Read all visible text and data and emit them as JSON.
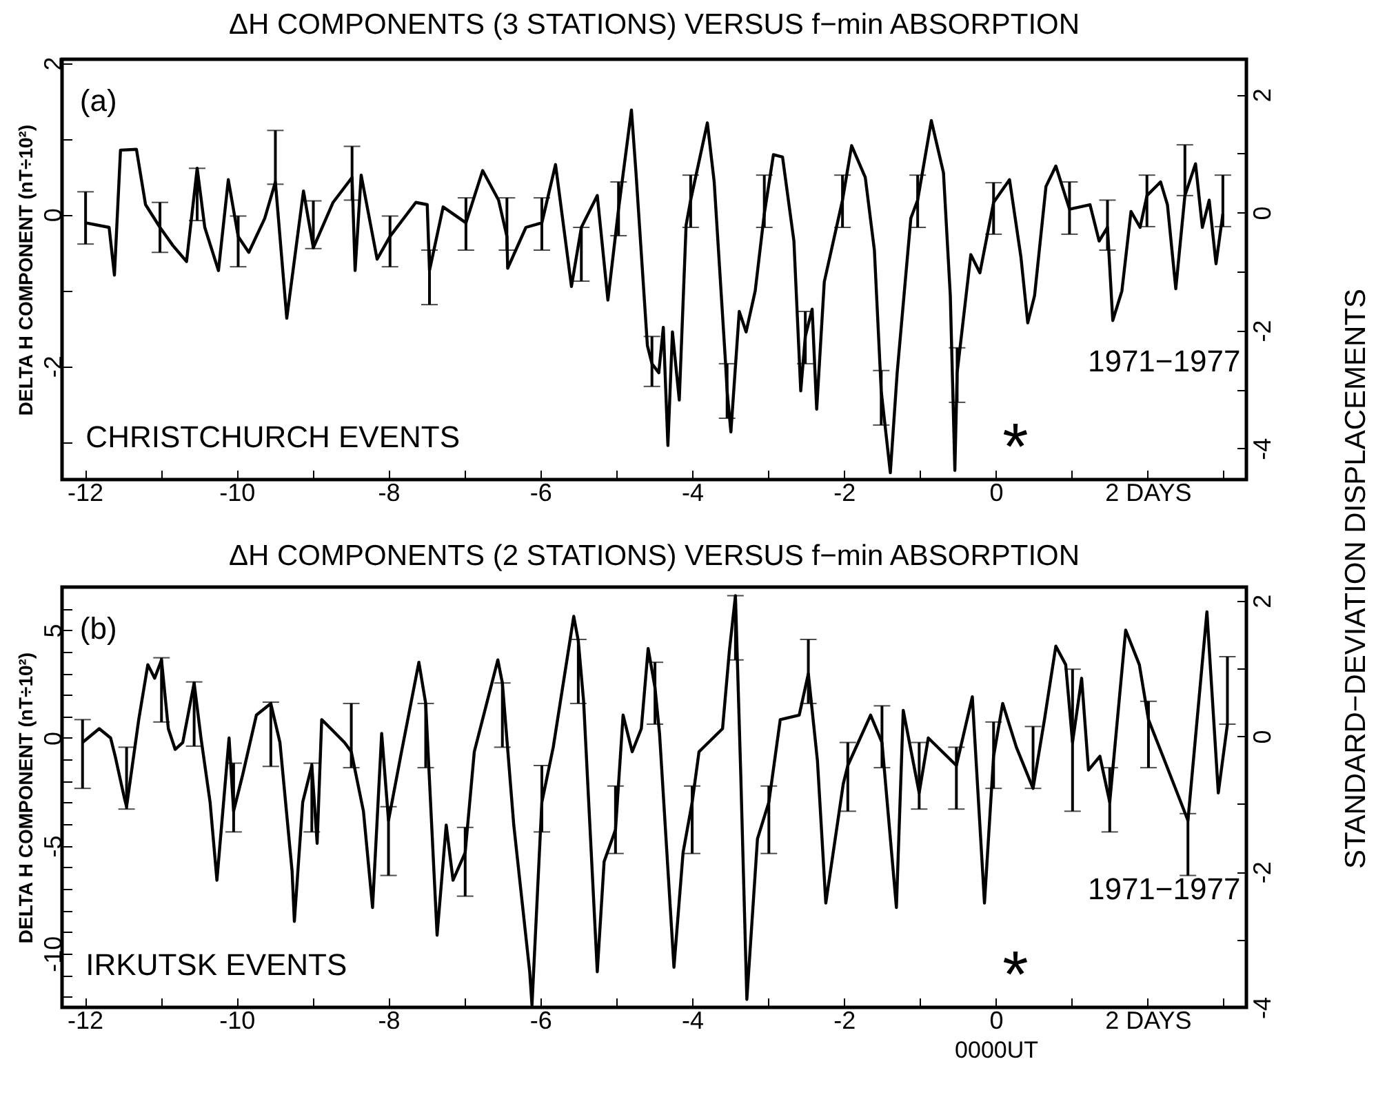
{
  "chart_data": [
    {
      "type": "line",
      "title": "ΔH COMPONENTS (3 STATIONS) VERSUS f−min ABSORPTION",
      "ylabel": "DELTA H COMPONENT (nT÷10²)",
      "y2label": "STANDARD−DEVIATION DISPLACEMENTS",
      "annotations": [
        "(a)",
        "CHRISTCHURCH EVENTS",
        "1971−1977",
        "*"
      ],
      "xlim": [
        -12.3,
        3.3
      ],
      "xticks": [
        -12,
        {
          "value": -11,
          "label": null
        },
        -10,
        {
          "value": -9,
          "label": null
        },
        -8,
        {
          "value": -7,
          "label": null
        },
        -6,
        {
          "value": -5,
          "label": null
        },
        -4,
        {
          "value": -3,
          "label": null
        },
        -2,
        {
          "value": -1,
          "label": null
        },
        0,
        {
          "value": 1,
          "label": null
        },
        {
          "value": 2,
          "label": "2 DAYS"
        },
        {
          "value": 3,
          "label": null
        }
      ],
      "ylim": [
        -3.5,
        2.05
      ],
      "yticks": [
        {
          "value": -3,
          "label": null
        },
        -2,
        {
          "value": -1,
          "label": null
        },
        0,
        {
          "value": 1,
          "label": null
        },
        2
      ],
      "y2lim": [
        -4.53,
        2.6
      ],
      "y2ticks": [
        -4,
        {
          "value": -3,
          "label": null
        },
        -2,
        {
          "value": -1,
          "label": null
        },
        0,
        {
          "value": 1,
          "label": null
        },
        2
      ],
      "series": [
        {
          "color": "#000000",
          "x": [
            -11.99,
            -11.68,
            -11.61,
            -11.53,
            -11.32,
            -11.2,
            -11.01,
            -10.84,
            -10.66,
            -10.52,
            -10.42,
            -10.24,
            -10.11,
            -9.98,
            -9.84,
            -9.63,
            -9.49,
            -9.34,
            -9.12,
            -8.99,
            -8.73,
            -8.48,
            -8.44,
            -8.36,
            -8.15,
            -7.98,
            -7.64,
            -7.49,
            -7.46,
            -7.28,
            -6.98,
            -6.76,
            -6.55,
            -6.44,
            -6.43,
            -6.19,
            -5.98,
            -5.8,
            -5.59,
            -5.46,
            -5.25,
            -5.11,
            -4.97,
            -4.8,
            -4.74,
            -4.59,
            -4.53,
            -4.44,
            -4.38,
            -4.32,
            -4.26,
            -4.17,
            -4.08,
            -4.02,
            -3.8,
            -3.71,
            -3.56,
            -3.54,
            -3.49,
            -3.38,
            -3.29,
            -3.17,
            -3.05,
            -2.93,
            -2.81,
            -2.66,
            -2.57,
            -2.51,
            -2.42,
            -2.36,
            -2.26,
            -2.02,
            -1.9,
            -1.72,
            -1.6,
            -1.51,
            -1.39,
            -1.3,
            -1.12,
            -1.03,
            -0.85,
            -0.69,
            -0.6,
            -0.54,
            -0.51,
            -0.33,
            -0.21,
            -0.03,
            0.18,
            0.33,
            0.42,
            0.51,
            0.66,
            0.79,
            0.97,
            1.24,
            1.36,
            1.47,
            1.54,
            1.66,
            1.78,
            1.9,
            1.99,
            2.17,
            2.26,
            2.37,
            2.49,
            2.63,
            2.72,
            2.81,
            2.9,
            2.99
          ],
          "values": [
            -0.11,
            -0.17,
            -0.8,
            0.85,
            0.86,
            0.13,
            -0.17,
            -0.41,
            -0.62,
            0.61,
            -0.17,
            -0.74,
            0.46,
            -0.29,
            -0.5,
            -0.05,
            0.43,
            -1.37,
            0.31,
            -0.44,
            0.16,
            0.49,
            -0.74,
            0.52,
            -0.59,
            -0.29,
            0.16,
            0.13,
            -0.74,
            0.1,
            -0.11,
            0.58,
            0.19,
            -0.29,
            -0.71,
            -0.17,
            -0.11,
            0.66,
            -0.95,
            -0.17,
            0.25,
            -1.13,
            0.07,
            1.38,
            0.55,
            -1.73,
            -1.97,
            -2.09,
            -1.49,
            -3.05,
            -1.55,
            -2.45,
            -0.14,
            0.19,
            1.21,
            0.43,
            -1.97,
            -2.33,
            -2.87,
            -1.28,
            -1.55,
            -1.01,
            0.01,
            0.79,
            0.76,
            -0.35,
            -2.33,
            -1.61,
            -1.25,
            -2.57,
            -0.89,
            0.19,
            0.91,
            0.49,
            -0.47,
            -2.33,
            -3.41,
            -2.09,
            -0.05,
            0.19,
            1.24,
            0.55,
            -1.07,
            -3.38,
            -2.09,
            -0.53,
            -0.77,
            0.16,
            0.46,
            -0.56,
            -1.43,
            -1.07,
            0.37,
            0.64,
            0.07,
            0.13,
            -0.35,
            -0.17,
            -1.4,
            -1.01,
            0.04,
            -0.17,
            0.25,
            0.43,
            0.13,
            -0.98,
            0.25,
            0.67,
            -0.17,
            0.19,
            -0.65,
            0.01
          ],
          "errors": [
            [
              -0.39,
              0.3
            ],
            null,
            null,
            null,
            null,
            null,
            [
              -0.5,
              0.16
            ],
            null,
            null,
            [
              -0.08,
              0.61
            ],
            null,
            null,
            null,
            [
              -0.69,
              -0.02
            ],
            null,
            null,
            [
              0.4,
              1.11
            ],
            null,
            null,
            [
              -0.45,
              0.18
            ],
            null,
            [
              0.19,
              0.9
            ],
            null,
            null,
            null,
            [
              -0.69,
              -0.02
            ],
            null,
            null,
            [
              -1.19,
              -0.47
            ],
            null,
            [
              -0.47,
              0.22
            ],
            null,
            null,
            [
              -0.47,
              0.22
            ],
            null,
            null,
            [
              -0.47,
              0.22
            ],
            null,
            null,
            [
              -0.88,
              -0.17
            ],
            null,
            null,
            [
              -0.28,
              0.43
            ],
            null,
            null,
            null,
            [
              -2.27,
              -1.61
            ],
            null,
            null,
            null,
            null,
            null,
            null,
            [
              -0.17,
              0.52
            ],
            null,
            null,
            null,
            [
              -2.69,
              -1.97
            ],
            null,
            null,
            null,
            null,
            [
              -0.17,
              0.52
            ],
            null,
            null,
            null,
            null,
            [
              -1.97,
              -1.28
            ],
            null,
            null,
            null,
            [
              -0.17,
              0.52
            ],
            null,
            null,
            null,
            [
              -2.78,
              -2.06
            ],
            null,
            null,
            null,
            [
              -0.17,
              0.52
            ],
            null,
            null,
            null,
            null,
            [
              -2.48,
              -1.76
            ],
            null,
            null,
            [
              -0.26,
              0.42
            ],
            null,
            null,
            null,
            null,
            null,
            null,
            [
              -0.26,
              0.43
            ],
            null,
            null,
            [
              -0.47,
              0.19
            ],
            null,
            null,
            null,
            null,
            [
              -0.16,
              0.52
            ],
            null,
            null,
            null,
            [
              0.25,
              0.92
            ],
            null,
            null,
            null,
            null,
            [
              -0.16,
              0.52
            ]
          ]
        }
      ]
    },
    {
      "type": "line",
      "title": "ΔH COMPONENTS (2 STATIONS) VERSUS f−min ABSORPTION",
      "xlabel": "0000UT",
      "ylabel": "DELTA H COMPONENT (nT÷10²)",
      "annotations": [
        "(b)",
        "IRKUTSK EVENTS",
        "1971−1977",
        "*"
      ],
      "xlim": [
        -12.3,
        3.3
      ],
      "xticks": [
        -12,
        {
          "value": -11,
          "label": null
        },
        -10,
        {
          "value": -9,
          "label": null
        },
        -8,
        {
          "value": -7,
          "label": null
        },
        -6,
        {
          "value": -5,
          "label": null
        },
        -4,
        {
          "value": -3,
          "label": null
        },
        -2,
        {
          "value": -1,
          "label": null
        },
        0,
        {
          "value": 1,
          "label": null
        },
        {
          "value": 2,
          "label": "2 DAYS"
        },
        {
          "value": 3,
          "label": null
        }
      ],
      "ylim": [
        -12.5,
        7
      ],
      "yticks": [
        {
          "value": -12,
          "label": null
        },
        {
          "value": -11,
          "label": null
        },
        -10,
        {
          "value": -9,
          "label": null
        },
        {
          "value": -8,
          "label": null
        },
        {
          "value": -7,
          "label": null
        },
        {
          "value": -6,
          "label": null
        },
        -5,
        {
          "value": -4,
          "label": null
        },
        {
          "value": -3,
          "label": null
        },
        {
          "value": -2,
          "label": null
        },
        {
          "value": -1,
          "label": null
        },
        0,
        {
          "value": 1,
          "label": null
        },
        {
          "value": 2,
          "label": null
        },
        {
          "value": 3,
          "label": null
        },
        {
          "value": 4,
          "label": null
        },
        5,
        {
          "value": 6,
          "label": null
        }
      ],
      "y2lim": [
        -4,
        2.2
      ],
      "y2ticks": [
        -4,
        {
          "value": -3,
          "label": null
        },
        -2,
        {
          "value": -1,
          "label": null
        },
        0,
        {
          "value": 1,
          "label": null
        },
        2
      ],
      "series": [
        {
          "color": "#000000",
          "x": [
            -12.03,
            -11.81,
            -11.66,
            -11.6,
            -11.48,
            -11.45,
            -11.29,
            -11.17,
            -11.08,
            -10.99,
            -10.9,
            -10.81,
            -10.71,
            -10.56,
            -10.47,
            -10.35,
            -10.26,
            -10.1,
            -10.04,
            -9.92,
            -9.74,
            -9.55,
            -9.43,
            -9.27,
            -9.24,
            -9.13,
            -9.01,
            -8.94,
            -8.88,
            -8.76,
            -8.58,
            -8.49,
            -8.33,
            -8.21,
            -8.09,
            -8.0,
            -7.84,
            -7.6,
            -7.51,
            -7.36,
            -7.24,
            -7.15,
            -6.99,
            -6.87,
            -6.56,
            -6.5,
            -6.35,
            -6.14,
            -6.11,
            -5.98,
            -5.83,
            -5.56,
            -5.5,
            -5.43,
            -5.25,
            -5.16,
            -5.01,
            -4.91,
            -4.79,
            -4.67,
            -4.58,
            -4.49,
            -4.43,
            -4.24,
            -4.12,
            -4.0,
            -3.91,
            -3.6,
            -3.51,
            -3.43,
            -3.36,
            -3.28,
            -3.14,
            -2.99,
            -2.84,
            -2.59,
            -2.47,
            -2.35,
            -2.24,
            -2.01,
            -1.95,
            -1.65,
            -1.5,
            -1.31,
            -1.22,
            -1.01,
            -0.89,
            -0.52,
            -0.31,
            -0.15,
            -0.03,
            0.09,
            0.27,
            0.49,
            0.64,
            0.79,
            0.92,
            1.01,
            1.13,
            1.22,
            1.37,
            1.5,
            1.71,
            1.89,
            2.01,
            2.2,
            2.53,
            2.78,
            2.93,
            3.05
          ],
          "values": [
            -0.21,
            0.43,
            0,
            -0.85,
            -2.77,
            -3.19,
            0.85,
            3.4,
            2.77,
            3.62,
            0.43,
            -0.53,
            -0.21,
            2.55,
            0,
            -2.98,
            -6.6,
            0,
            -3.4,
            -1.7,
            1.06,
            1.6,
            -0.21,
            -6.17,
            -8.51,
            -2.98,
            -1.28,
            -4.89,
            0.85,
            0.43,
            -0.21,
            -0.64,
            -3.4,
            -7.87,
            0.21,
            -3.83,
            -0.85,
            3.51,
            1.6,
            -9.15,
            -4.04,
            -6.6,
            -5.32,
            -0.64,
            3.62,
            2.55,
            -4.04,
            -10.85,
            -12.4,
            -2.98,
            -0.43,
            5.64,
            4.5,
            1.7,
            -10.85,
            -5.74,
            -4.26,
            1.06,
            -0.64,
            0.43,
            4.15,
            2.34,
            0.21,
            -10.64,
            -5.32,
            -2.98,
            -0.64,
            0.43,
            4.04,
            6.6,
            -1.7,
            -12.13,
            -4.68,
            -2.98,
            0.85,
            1.06,
            2.98,
            -1.06,
            -7.66,
            -2.13,
            -1.28,
            1.06,
            -0.21,
            -7.87,
            1.28,
            -2.55,
            0,
            -1.28,
            1.91,
            -7.66,
            -0.85,
            1.6,
            -0.43,
            -2.34,
            0.85,
            4.26,
            3.4,
            -0.21,
            2.77,
            -1.49,
            -0.85,
            -2.98,
            5.0,
            3.4,
            0.85,
            -0.85,
            -3.83,
            5.85,
            -2.55,
            0.64
          ],
          "errors": [
            [
              -2.34,
              0.85
            ],
            null,
            null,
            null,
            null,
            [
              -3.3,
              -0.43
            ],
            null,
            null,
            null,
            [
              0.74,
              3.72
            ],
            null,
            null,
            null,
            [
              -0.38,
              2.6
            ],
            null,
            null,
            null,
            null,
            [
              -4.36,
              -1.17
            ],
            null,
            null,
            [
              -1.32,
              1.66
            ],
            null,
            null,
            null,
            null,
            [
              -4.36,
              -1.17
            ],
            null,
            null,
            null,
            null,
            [
              -1.38,
              1.6
            ],
            null,
            null,
            null,
            [
              -6.38,
              -3.19
            ],
            null,
            null,
            [
              -1.38,
              1.6
            ],
            null,
            null,
            null,
            [
              -7.34,
              -4.15
            ],
            null,
            null,
            [
              -0.43,
              2.55
            ],
            null,
            null,
            null,
            [
              -4.36,
              -1.28
            ],
            null,
            null,
            [
              1.6,
              4.57
            ],
            null,
            null,
            null,
            [
              -5.36,
              -2.23
            ],
            null,
            null,
            null,
            null,
            [
              0.64,
              3.51
            ],
            null,
            null,
            null,
            [
              -5.36,
              -2.23
            ],
            null,
            null,
            null,
            [
              3.62,
              6.6
            ],
            null,
            null,
            null,
            [
              -5.36,
              -2.23
            ],
            null,
            null,
            [
              1.6,
              4.57
            ],
            null,
            null,
            null,
            [
              -3.4,
              -0.21
            ],
            null,
            [
              -1.38,
              1.49
            ],
            null,
            null,
            [
              -3.3,
              -0.21
            ],
            null,
            [
              -3.3,
              -0.43
            ],
            null,
            null,
            [
              -2.34,
              0.74
            ],
            null,
            null,
            [
              -2.34,
              0.53
            ],
            null,
            null,
            null,
            [
              -3.4,
              3.19
            ],
            null,
            null,
            null,
            [
              -4.36,
              -1.38
            ],
            null,
            null,
            [
              -1.38,
              1.7
            ],
            null,
            [
              -6.38,
              -3.51
            ],
            null,
            null,
            [
              0.64,
              3.77
            ]
          ]
        }
      ]
    }
  ]
}
